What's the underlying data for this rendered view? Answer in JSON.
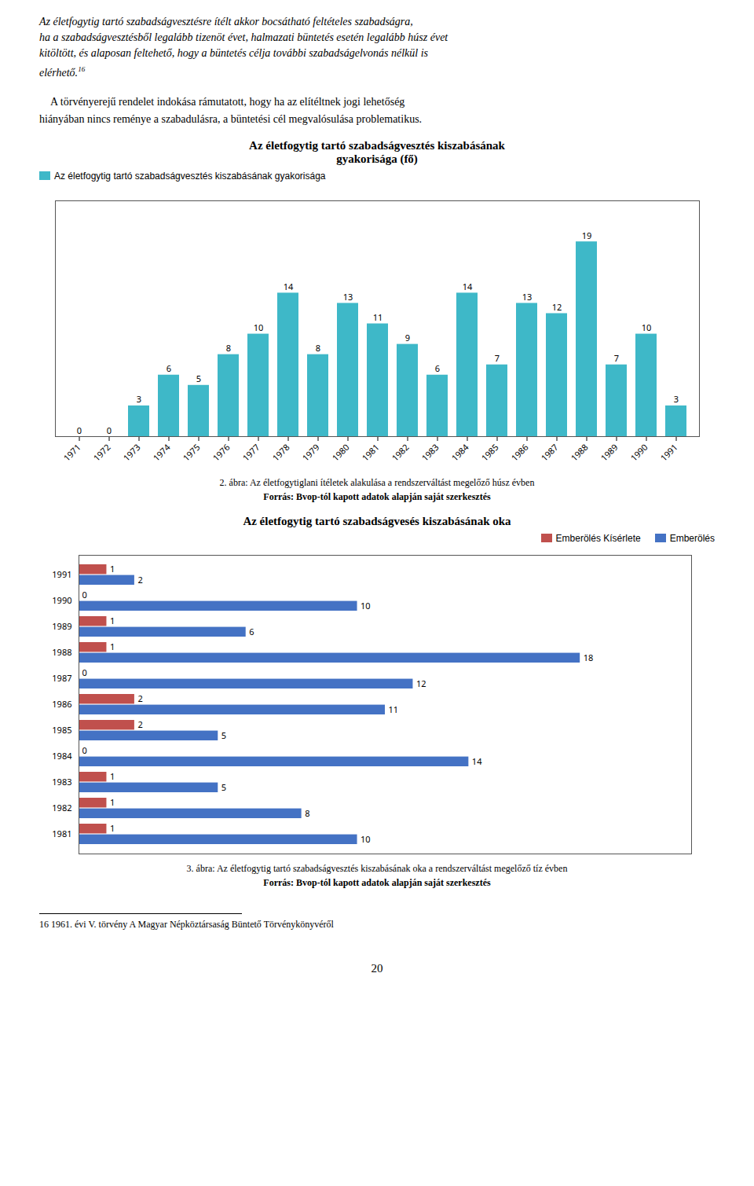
{
  "chart_data": [
    {
      "type": "bar",
      "title": "Az életfogytig tartó szabadságvesztés kiszabásának\ngyakorisága (fő)",
      "annotations": [
        "Az életfogytig tartó szabadságvesztésre ítélt akkor bocsátható feltételes szabadságra,",
        "ha a szabadságvesztésből legalább tizenöt évet, halmazati büntetés esetén legalább húsz évet",
        "kitöltött, és alaposan feltehető, hogy a büntetés célja további szabadságelvonás nélkül is",
        "elérhető.",
        "16",
        "    A törvényerejű rendelet indokása rámutatott, hogy ha az elítéltnek jogi lehetőség",
        "hiányában nincs reménye a szabadulásra, a büntetési cél megvalósulása problematikus."
      ],
      "categories": [
        "1971",
        "1972",
        "1973",
        "1974",
        "1975",
        "1976",
        "1977",
        "1978",
        "1979",
        "1980",
        "1981",
        "1982",
        "1983",
        "1984",
        "1985",
        "1986",
        "1987",
        "1988",
        "1989",
        "1990",
        "1991"
      ],
      "series": [
        {
          "name": "Az életfogytig tartó szabadságvesztés kiszabásának gyakorisága",
          "color": "#3eb8c8",
          "values": [
            0,
            0,
            3,
            6,
            5,
            8,
            10,
            14,
            8,
            13,
            11,
            9,
            6,
            14,
            7,
            13,
            12,
            19,
            7,
            10,
            3
          ]
        }
      ],
      "ylim": [
        0,
        23
      ],
      "tick_labels": "x",
      "data_labels": true,
      "legend": "upper left",
      "caption": [
        "2. ábra: Az életfogytiglani ítéletek alakulása a rendszerváltást megelőző húsz évben",
        "Forrás: Bvop-tól kapott adatok alapján saját szerkesztés"
      ]
    },
    {
      "type": "bar",
      "orientation": "horizontal",
      "title": "Az életfogytig tartó szabadságvesés kiszabásának oka",
      "categories": [
        "1991",
        "1990",
        "1989",
        "1988",
        "1987",
        "1986",
        "1985",
        "1984",
        "1983",
        "1982",
        "1981"
      ],
      "series": [
        {
          "name": "Emberölés Kísérlete",
          "color": "#c0504d",
          "values": [
            1,
            0,
            1,
            1,
            0,
            2,
            2,
            0,
            1,
            1,
            1
          ]
        },
        {
          "name": "Emberölés",
          "color": "#4472c4",
          "values": [
            2,
            10,
            6,
            18,
            12,
            11,
            5,
            14,
            5,
            8,
            10
          ]
        }
      ],
      "xlim": [
        0,
        22
      ],
      "tick_labels": "y",
      "data_labels": true,
      "legend": "upper right",
      "caption": [
        "3. ábra: Az életfogytig tartó szabadságvesztés kiszabásának oka a rendszerváltást megelőző tíz évben",
        "Forrás: Bvop-tól kapott adatok alapján saját szerkesztés"
      ],
      "annotations": [
        "16 1961. évi V. törvény A Magyar Népköztársaság Büntető Törvénykönyvéről",
        "20"
      ]
    }
  ]
}
